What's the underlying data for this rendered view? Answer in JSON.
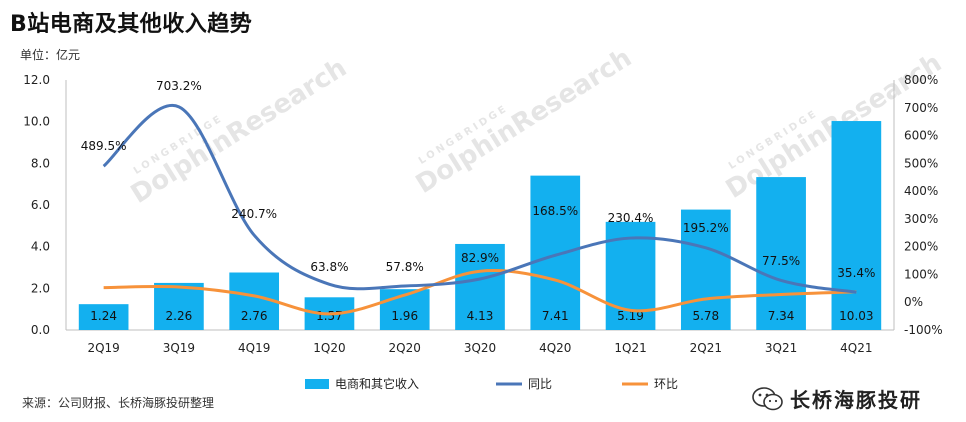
{
  "title": "B站电商及其他收入趋势",
  "unit_label": "单位：亿元",
  "source": "来源：公司财报、长桥海豚投研整理",
  "brand": "长桥海豚投研",
  "watermark": {
    "main": "DolphinResearch",
    "sub": "LONGBRIDGE"
  },
  "colors": {
    "bar": "#13b0ef",
    "yoy": "#4a76b8",
    "qoq": "#f7923a",
    "axis": "#bfbfbf"
  },
  "chart_data": {
    "type": "bar",
    "categories": [
      "2Q19",
      "3Q19",
      "4Q19",
      "1Q20",
      "2Q20",
      "3Q20",
      "4Q20",
      "1Q21",
      "2Q21",
      "3Q21",
      "4Q21"
    ],
    "series": [
      {
        "name": "电商和其它收入",
        "type": "bar",
        "axis": "left",
        "values": [
          1.24,
          2.26,
          2.76,
          1.57,
          1.96,
          4.13,
          7.41,
          5.19,
          5.78,
          7.34,
          10.03
        ],
        "labels": [
          "1.24",
          "2.26",
          "2.76",
          "1.57",
          "1.96",
          "4.13",
          "7.41",
          "5.19",
          "5.78",
          "7.34",
          "10.03"
        ]
      },
      {
        "name": "同比",
        "type": "line",
        "axis": "right",
        "values": [
          489.5,
          703.2,
          240.7,
          63.8,
          57.8,
          82.9,
          168.5,
          230.4,
          195.2,
          77.5,
          35.4
        ],
        "labels": [
          "489.5%",
          "703.2%",
          "240.7%",
          "63.8%",
          "57.8%",
          "82.9%",
          "168.5%",
          "230.4%",
          "195.2%",
          "77.5%",
          "35.4%"
        ]
      },
      {
        "name": "环比",
        "type": "line",
        "axis": "right",
        "values": [
          52,
          54,
          22,
          -43,
          25,
          111,
          79,
          -30,
          11,
          27,
          37
        ]
      }
    ],
    "y_left": {
      "min": 0,
      "max": 12,
      "ticks": [
        "0.0",
        "2.0",
        "4.0",
        "6.0",
        "8.0",
        "10.0",
        "12.0"
      ]
    },
    "y_right": {
      "min": -100,
      "max": 800,
      "ticks": [
        "-100%",
        "0%",
        "100%",
        "200%",
        "300%",
        "400%",
        "500%",
        "600%",
        "700%",
        "800%"
      ]
    },
    "grid": false,
    "legend_position": "bottom"
  }
}
